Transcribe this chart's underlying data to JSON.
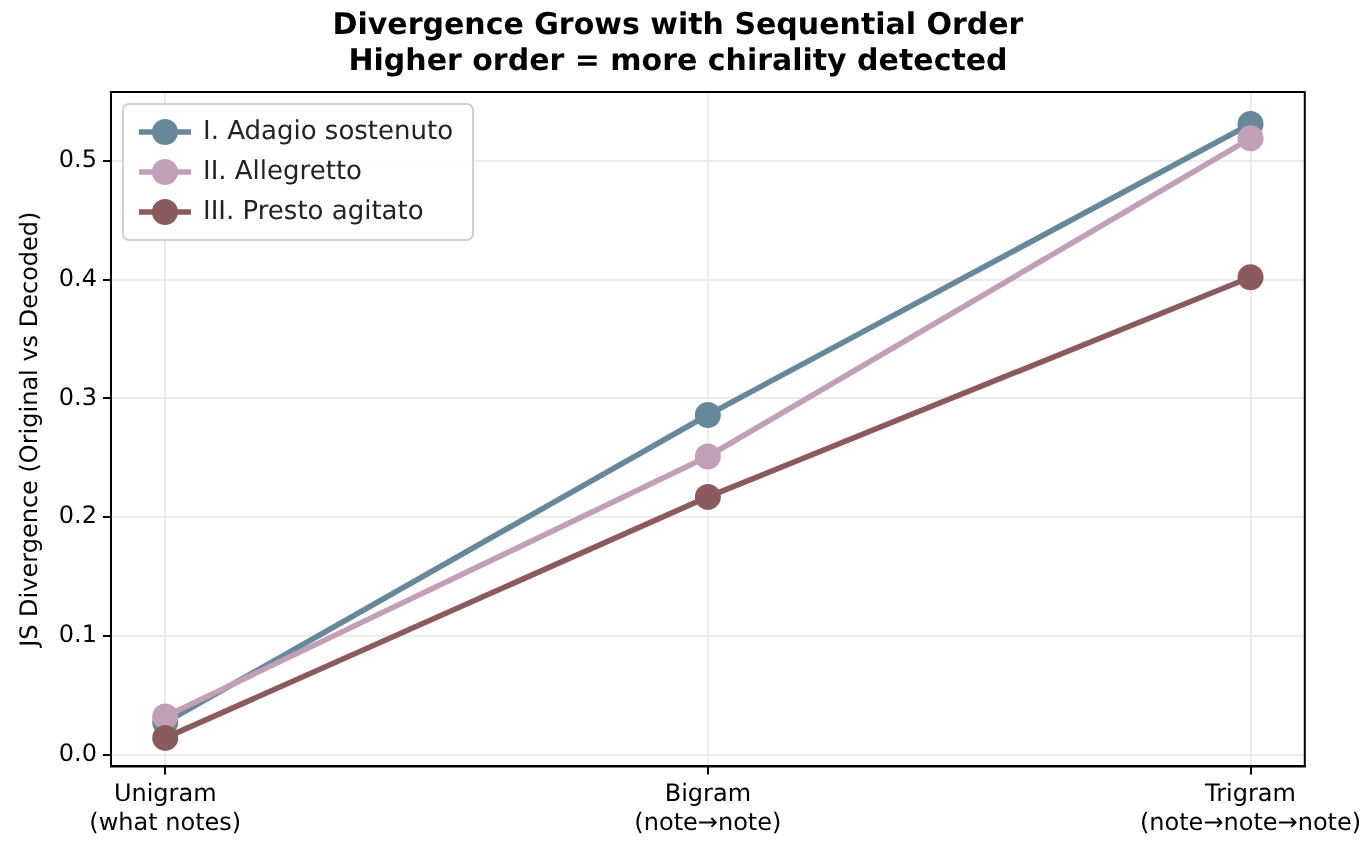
{
  "chart_data": {
    "type": "line",
    "title": "Divergence Grows with Sequential Order",
    "subtitle": "Higher order = more chirality detected",
    "ylabel": "JS Divergence (Original vs Decoded)",
    "categories": [
      "Unigram\n(what notes)",
      "Bigram\n(note→note)",
      "Trigram\n(note→note→note)"
    ],
    "series": [
      {
        "name": "I. Adagio sostenuto",
        "color": "#668899",
        "values": [
          0.027,
          0.286,
          0.531
        ]
      },
      {
        "name": "II. Allegretto",
        "color": "#c19fb7",
        "values": [
          0.032,
          0.251,
          0.519
        ]
      },
      {
        "name": "III. Presto agitato",
        "color": "#8a5a5e",
        "values": [
          0.014,
          0.217,
          0.402
        ]
      }
    ],
    "ylim": [
      -0.01,
      0.558
    ],
    "yticks": [
      {
        "value": 0,
        "label": "0.0"
      },
      {
        "value": 0.1,
        "label": "0.1"
      },
      {
        "value": 0.2,
        "label": "0.2"
      },
      {
        "value": 0.3,
        "label": "0.3"
      },
      {
        "value": 0.4,
        "label": "0.4"
      },
      {
        "value": 0.5,
        "label": "0.5"
      }
    ],
    "grid": true,
    "legend": "top left",
    "marker": "circle",
    "line_style": "solid"
  }
}
